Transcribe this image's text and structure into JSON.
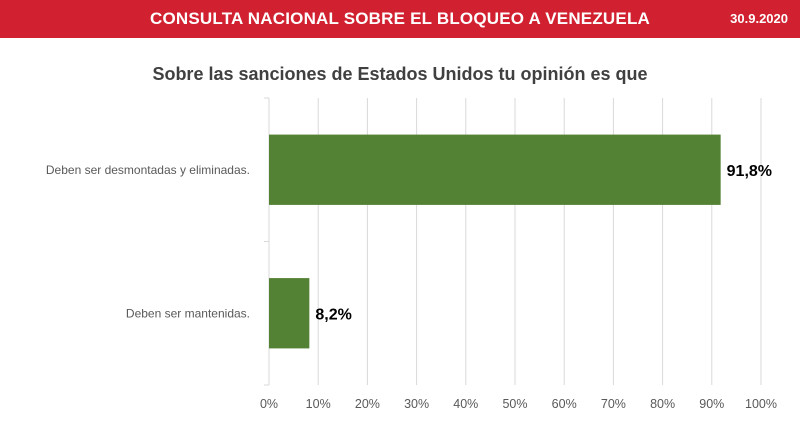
{
  "header": {
    "title": "CONSULTA NACIONAL SOBRE EL BLOQUEO A VENEZUELA",
    "date": "30.9.2020"
  },
  "colors": {
    "header_bg": "#d1202f",
    "bar": "#548235",
    "gridline": "#d9d9d9"
  },
  "chart_data": {
    "type": "bar",
    "orientation": "horizontal",
    "title": "Sobre las sanciones de Estados Unidos tu opinión es que",
    "xlabel": "",
    "ylabel": "",
    "categories": [
      "Deben ser desmontadas y eliminadas.",
      "Deben ser mantenidas."
    ],
    "values": [
      91.8,
      8.2
    ],
    "data_labels": [
      "91,8%",
      "8,2%"
    ],
    "xlim": [
      0,
      100
    ],
    "x_ticks": [
      "0%",
      "10%",
      "20%",
      "30%",
      "40%",
      "50%",
      "60%",
      "70%",
      "80%",
      "90%",
      "100%"
    ],
    "grid": "vertical",
    "legend": "none"
  }
}
